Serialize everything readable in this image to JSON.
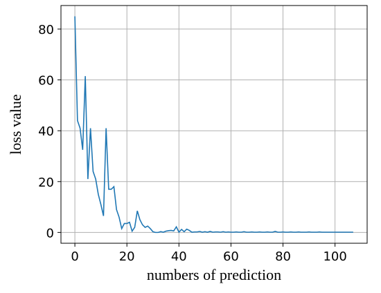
{
  "chart_data": {
    "type": "line",
    "x_label": "numbers of prediction",
    "y_label": "loss value",
    "x": [
      0,
      1,
      2,
      3,
      4,
      5,
      6,
      7,
      8,
      9,
      10,
      11,
      12,
      13,
      14,
      15,
      16,
      17,
      18,
      19,
      20,
      21,
      22,
      23,
      24,
      25,
      26,
      27,
      28,
      29,
      30,
      31,
      32,
      33,
      34,
      35,
      36,
      37,
      38,
      39,
      40,
      41,
      42,
      43,
      44,
      45,
      46,
      47,
      48,
      49,
      50,
      51,
      52,
      53,
      54,
      55,
      56,
      57,
      58,
      59,
      60,
      61,
      62,
      63,
      64,
      65,
      66,
      67,
      68,
      69,
      70,
      71,
      72,
      73,
      74,
      75,
      76,
      77,
      78,
      79,
      80,
      81,
      82,
      83,
      84,
      85,
      86,
      87,
      88,
      89,
      90,
      91,
      92,
      93,
      94,
      95,
      96,
      97,
      98,
      99,
      100,
      101,
      102,
      103,
      104,
      105,
      106,
      107
    ],
    "series": [
      {
        "color": "#1f77b4",
        "values": [
          85,
          44,
          41,
          32.5,
          61.5,
          21,
          41,
          24,
          21,
          15,
          11,
          6.5,
          41,
          17,
          17,
          18,
          9,
          6,
          1.5,
          3.5,
          3.5,
          4,
          0.5,
          2,
          8.5,
          5,
          3,
          2,
          2.5,
          1.5,
          0.3,
          0,
          0,
          0.3,
          0.1,
          0.5,
          0.7,
          0.8,
          0.6,
          2.2,
          0.1,
          1.2,
          0.3,
          1.3,
          0.8,
          0.1,
          0.2,
          0.2,
          0.4,
          0.1,
          0.3,
          0.1,
          0.4,
          0.1,
          0.2,
          0.2,
          0.1,
          0.3,
          0.1,
          0.2,
          0.1,
          0.1,
          0.2,
          0.1,
          0.1,
          0.3,
          0.1,
          0.1,
          0.2,
          0.1,
          0.1,
          0.2,
          0.1,
          0.1,
          0.2,
          0.1,
          0.1,
          0.4,
          0.1,
          0.1,
          0.2,
          0.1,
          0.1,
          0.2,
          0.1,
          0.1,
          0.2,
          0.1,
          0.1,
          0.1,
          0.2,
          0.1,
          0.1,
          0.1,
          0.2,
          0.1,
          0.1,
          0.1,
          0.1,
          0.1,
          0.1,
          0.1,
          0.1,
          0.1,
          0.1,
          0.1,
          0.1,
          0.1
        ]
      }
    ],
    "xlim": [
      -5.35,
      112.35
    ],
    "ylim": [
      -4.25,
      89.25
    ],
    "xticks": [
      0,
      20,
      40,
      60,
      80,
      100
    ],
    "yticks": [
      0,
      20,
      40,
      60,
      80
    ],
    "grid": true
  }
}
